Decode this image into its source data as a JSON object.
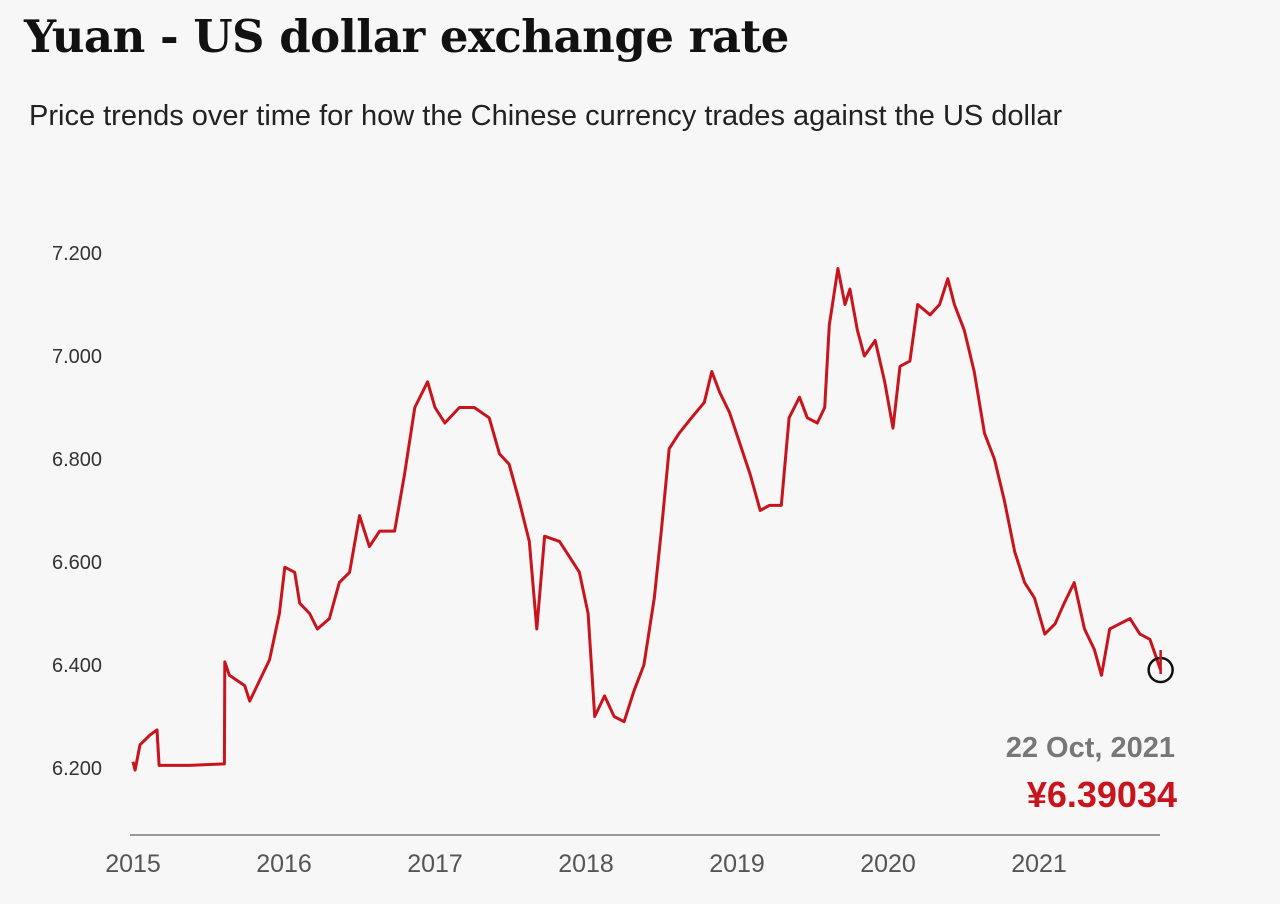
{
  "chart_data": {
    "type": "line",
    "title": "Yuan - US dollar exchange rate",
    "subtitle": "Price trends over time for how the Chinese currency trades against the US dollar",
    "xlabel": "",
    "ylabel": "",
    "ylim": [
      6.1,
      7.2
    ],
    "xlim": [
      "2015-01-01",
      "2021-10-22"
    ],
    "y_ticks": [
      "7.200",
      "7.000",
      "6.800",
      "6.600",
      "6.400",
      "6.200"
    ],
    "y_tick_values": [
      7.2,
      7.0,
      6.8,
      6.6,
      6.4,
      6.2
    ],
    "x_ticks": [
      "2015",
      "2016",
      "2017",
      "2018",
      "2019",
      "2020",
      "2021"
    ],
    "grid": false,
    "line_color": "#c8141c",
    "series": [
      {
        "points": [
          [
            "2015-01-01",
            6.212
          ],
          [
            "2015-01-06",
            6.196
          ],
          [
            "2015-01-18",
            6.245
          ],
          [
            "2015-02-11",
            6.264
          ],
          [
            "2015-02-28",
            6.274
          ],
          [
            "2015-03-05",
            6.205
          ],
          [
            "2015-05-17",
            6.205
          ],
          [
            "2015-08-10",
            6.208
          ],
          [
            "2015-08-11",
            6.406
          ],
          [
            "2015-08-22",
            6.38
          ],
          [
            "2015-09-28",
            6.36
          ],
          [
            "2015-10-10",
            6.33
          ],
          [
            "2015-11-03",
            6.37
          ],
          [
            "2015-11-27",
            6.41
          ],
          [
            "2015-12-21",
            6.5
          ],
          [
            "2016-01-03",
            6.59
          ],
          [
            "2016-01-27",
            6.58
          ],
          [
            "2016-02-08",
            6.52
          ],
          [
            "2016-03-03",
            6.5
          ],
          [
            "2016-03-22",
            6.47
          ],
          [
            "2016-04-20",
            6.49
          ],
          [
            "2016-05-14",
            6.56
          ],
          [
            "2016-06-08",
            6.58
          ],
          [
            "2016-07-02",
            6.69
          ],
          [
            "2016-07-26",
            6.63
          ],
          [
            "2016-08-20",
            6.66
          ],
          [
            "2016-09-25",
            6.66
          ],
          [
            "2016-10-19",
            6.77
          ],
          [
            "2016-11-13",
            6.9
          ],
          [
            "2016-12-14",
            6.95
          ],
          [
            "2017-01-01",
            6.9
          ],
          [
            "2017-01-25",
            6.87
          ],
          [
            "2017-03-01",
            6.9
          ],
          [
            "2017-04-06",
            6.9
          ],
          [
            "2017-05-12",
            6.88
          ],
          [
            "2017-06-06",
            6.81
          ],
          [
            "2017-06-29",
            6.79
          ],
          [
            "2017-07-23",
            6.72
          ],
          [
            "2017-08-17",
            6.64
          ],
          [
            "2017-09-04",
            6.47
          ],
          [
            "2017-09-23",
            6.65
          ],
          [
            "2017-10-29",
            6.64
          ],
          [
            "2017-11-22",
            6.61
          ],
          [
            "2017-12-16",
            6.58
          ],
          [
            "2018-01-06",
            6.5
          ],
          [
            "2018-01-22",
            6.3
          ],
          [
            "2018-02-15",
            6.34
          ],
          [
            "2018-03-10",
            6.3
          ],
          [
            "2018-04-03",
            6.29
          ],
          [
            "2018-04-27",
            6.35
          ],
          [
            "2018-05-21",
            6.4
          ],
          [
            "2018-06-15",
            6.53
          ],
          [
            "2018-07-02",
            6.66
          ],
          [
            "2018-07-21",
            6.82
          ],
          [
            "2018-08-14",
            6.85
          ],
          [
            "2018-09-13",
            6.88
          ],
          [
            "2018-10-14",
            6.91
          ],
          [
            "2018-11-01",
            6.97
          ],
          [
            "2018-11-20",
            6.93
          ],
          [
            "2018-12-14",
            6.89
          ],
          [
            "2019-01-08",
            6.83
          ],
          [
            "2019-02-02",
            6.77
          ],
          [
            "2019-02-26",
            6.7
          ],
          [
            "2019-03-20",
            6.71
          ],
          [
            "2019-04-18",
            6.71
          ],
          [
            "2019-05-07",
            6.88
          ],
          [
            "2019-06-01",
            6.92
          ],
          [
            "2019-06-20",
            6.88
          ],
          [
            "2019-07-14",
            6.87
          ],
          [
            "2019-08-01",
            6.9
          ],
          [
            "2019-08-12",
            7.06
          ],
          [
            "2019-09-02",
            7.17
          ],
          [
            "2019-09-19",
            7.1
          ],
          [
            "2019-10-01",
            7.13
          ],
          [
            "2019-10-19",
            7.05
          ],
          [
            "2019-11-05",
            7.0
          ],
          [
            "2019-12-01",
            7.03
          ],
          [
            "2019-12-24",
            6.95
          ],
          [
            "2020-01-13",
            6.86
          ],
          [
            "2020-01-30",
            6.98
          ],
          [
            "2020-02-23",
            6.99
          ],
          [
            "2020-03-13",
            7.1
          ],
          [
            "2020-04-12",
            7.08
          ],
          [
            "2020-05-05",
            7.1
          ],
          [
            "2020-05-25",
            7.15
          ],
          [
            "2020-06-10",
            7.1
          ],
          [
            "2020-07-04",
            7.05
          ],
          [
            "2020-07-28",
            6.97
          ],
          [
            "2020-08-22",
            6.85
          ],
          [
            "2020-09-15",
            6.8
          ],
          [
            "2020-10-09",
            6.72
          ],
          [
            "2020-11-03",
            6.62
          ],
          [
            "2020-11-27",
            6.56
          ],
          [
            "2020-12-21",
            6.53
          ],
          [
            "2021-01-15",
            6.46
          ],
          [
            "2021-02-09",
            6.48
          ],
          [
            "2021-03-03",
            6.52
          ],
          [
            "2021-03-27",
            6.56
          ],
          [
            "2021-04-21",
            6.47
          ],
          [
            "2021-05-15",
            6.43
          ],
          [
            "2021-06-01",
            6.38
          ],
          [
            "2021-06-21",
            6.47
          ],
          [
            "2021-07-15",
            6.48
          ],
          [
            "2021-08-09",
            6.49
          ],
          [
            "2021-09-02",
            6.46
          ],
          [
            "2021-09-26",
            6.45
          ],
          [
            "2021-10-22",
            6.39034
          ]
        ]
      }
    ],
    "annotation": {
      "date": "22 Oct, 2021",
      "value": "¥6.39034",
      "color": "#c8141c"
    }
  }
}
